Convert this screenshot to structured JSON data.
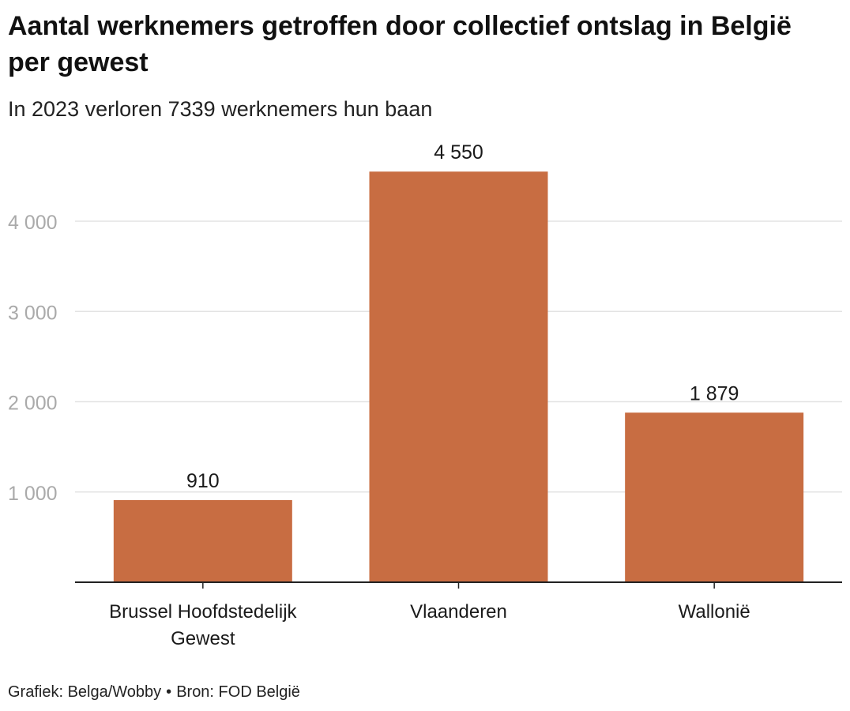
{
  "header": {
    "title": "Aantal werknemers getroffen door collectief ontslag in België per gewest",
    "subtitle": "In 2023 verloren 7339 werknemers hun baan"
  },
  "footer": {
    "credit": "Grafiek: Belga/Wobby",
    "separator": "•",
    "source": "Bron: FOD België"
  },
  "colors": {
    "bar": "#C86D42",
    "gridline": "#e3e3e3",
    "axis": "#222222",
    "tick_label": "#aaaaaa",
    "text": "#1a1a1a"
  },
  "chart_data": {
    "type": "bar",
    "title": "Aantal werknemers getroffen door collectief ontslag in België per gewest",
    "subtitle": "In 2023 verloren 7339 werknemers hun baan",
    "categories": [
      [
        "Brussel Hoofdstedelijk",
        "Gewest"
      ],
      [
        "Vlaanderen"
      ],
      [
        "Wallonië"
      ]
    ],
    "values": [
      910,
      4550,
      1879
    ],
    "value_labels": [
      "910",
      "4 550",
      "1 879"
    ],
    "y_ticks": [
      1000,
      2000,
      3000,
      4000
    ],
    "y_tick_labels": [
      "1 000",
      "2 000",
      "3 000",
      "4 000"
    ],
    "xlabel": "",
    "ylabel": "",
    "ylim": [
      0,
      4550
    ],
    "grid": true
  }
}
